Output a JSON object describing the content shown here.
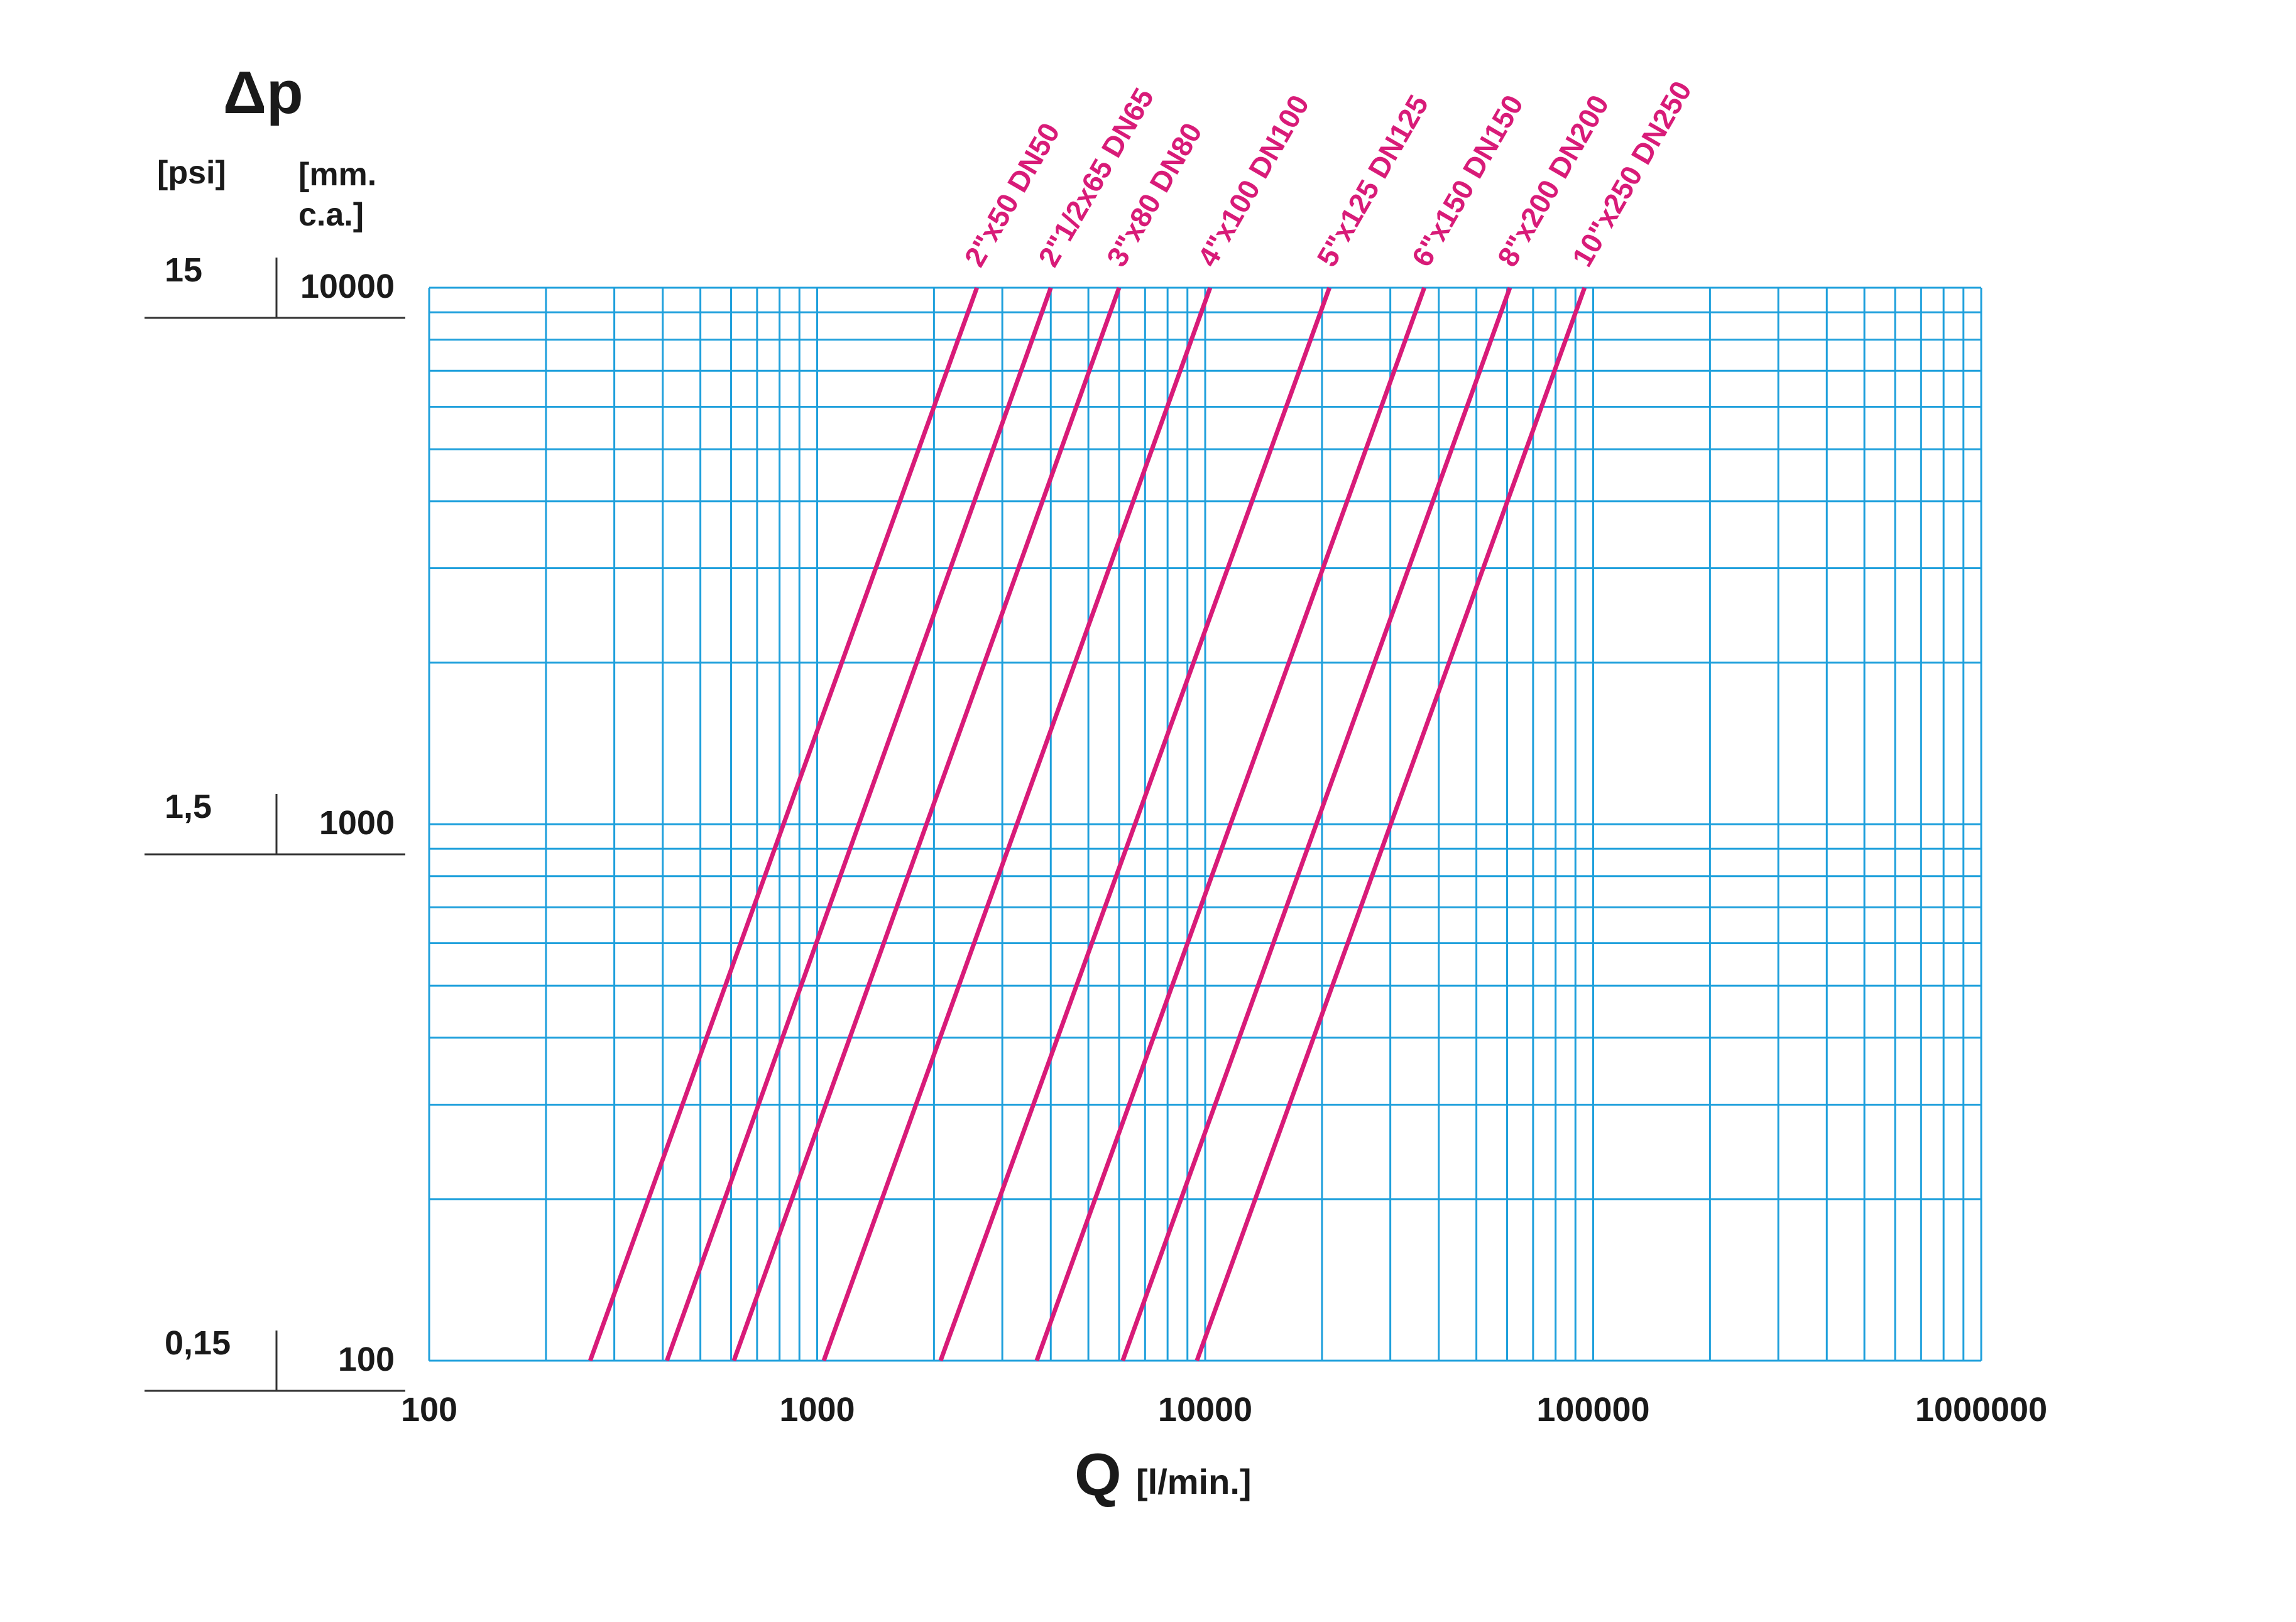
{
  "colors": {
    "grid": "#1fa0dc",
    "curve": "#d81b78",
    "text": "#1a1a1a"
  },
  "chart_data": {
    "type": "line",
    "title": "",
    "xlabel": "Q",
    "xunit": "[l/min.]",
    "ylabel": "Δp",
    "yunit_left": "[psi]",
    "yunit_right": "[mm. c.a.]",
    "x_scale": "log",
    "y_scale": "log",
    "xlim": [
      100,
      1000000
    ],
    "ylim": [
      100,
      10000
    ],
    "grid": true,
    "x_ticks": [
      "100",
      "1000",
      "10000",
      "100000",
      "1000000"
    ],
    "y_ticks": [
      {
        "psi": "0,15",
        "mm": "100"
      },
      {
        "psi": "1,5",
        "mm": "1000"
      },
      {
        "psi": "15",
        "mm": "10000"
      }
    ],
    "series": [
      {
        "name": "2\"x50 DN50",
        "x": [
          260,
          2580
        ],
        "y": [
          100,
          10000
        ]
      },
      {
        "name": "2\"1/2x65 DN65",
        "x": [
          410,
          4000
        ],
        "y": [
          100,
          10000
        ]
      },
      {
        "name": "3\"x80 DN80",
        "x": [
          610,
          6000
        ],
        "y": [
          100,
          10000
        ]
      },
      {
        "name": "4\"x100 DN100",
        "x": [
          1040,
          10300
        ],
        "y": [
          100,
          10000
        ]
      },
      {
        "name": "5\"x125 DN125",
        "x": [
          2080,
          20900
        ],
        "y": [
          100,
          10000
        ]
      },
      {
        "name": "6\"x150 DN150",
        "x": [
          3680,
          36700
        ],
        "y": [
          100,
          10000
        ]
      },
      {
        "name": "8\"x200  DN200",
        "x": [
          6130,
          61000
        ],
        "y": [
          100,
          10000
        ]
      },
      {
        "name": "10\"x250 DN250",
        "x": [
          9520,
          95000
        ],
        "y": [
          100,
          10000
        ]
      }
    ]
  }
}
